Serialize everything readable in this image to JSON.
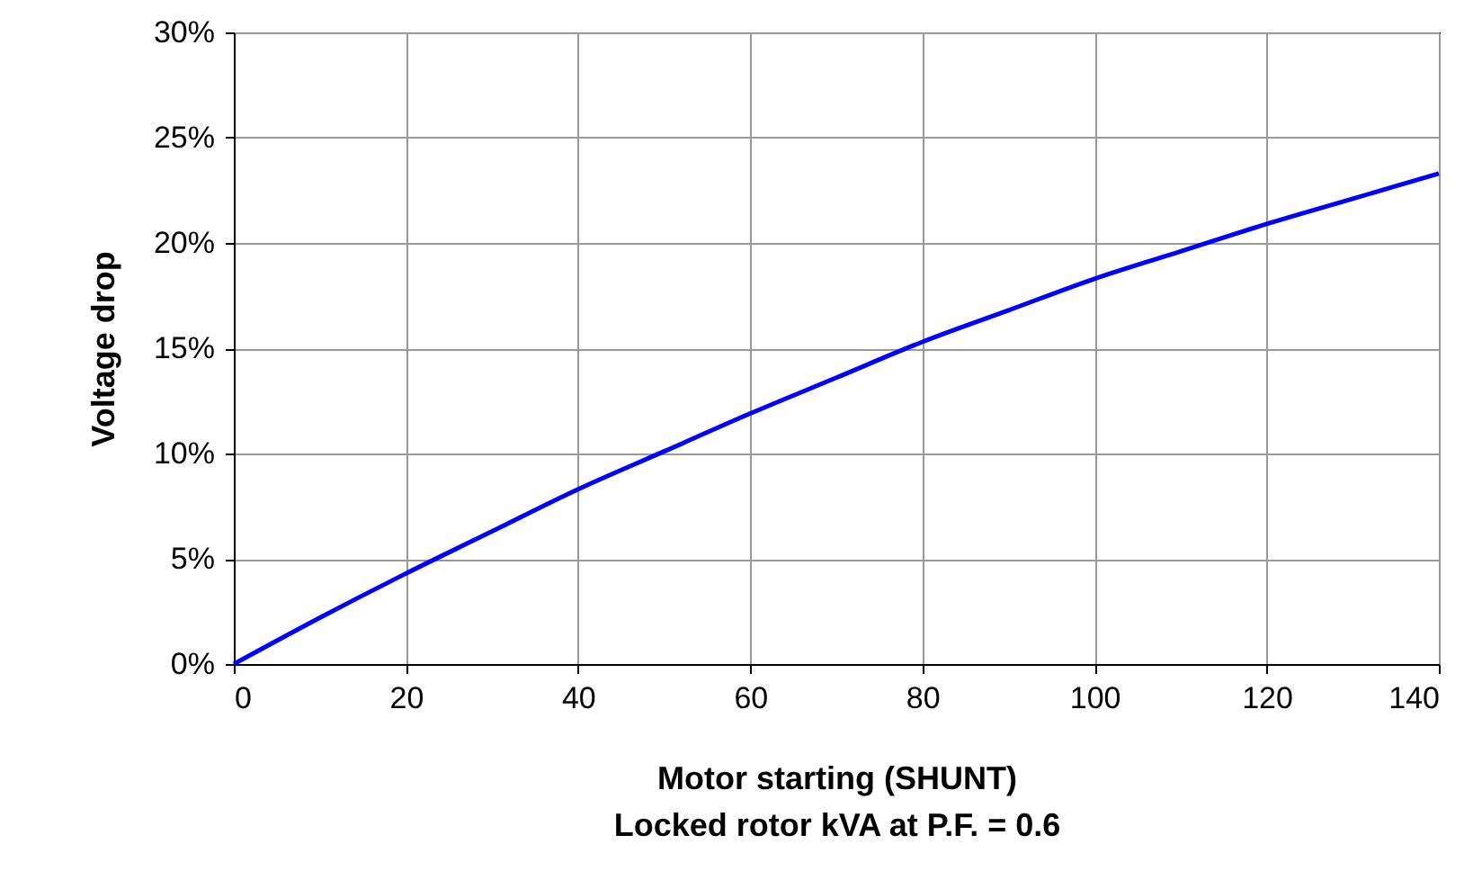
{
  "chart_data": {
    "type": "line",
    "xlabel": "Motor starting (SHUNT)\nLocked rotor kVA at P.F. = 0.6",
    "ylabel": "Voltage drop",
    "x": [
      0,
      10,
      20,
      30,
      40,
      50,
      60,
      70,
      80,
      90,
      100,
      110,
      120,
      130,
      140
    ],
    "series": [
      {
        "color": "#0000ff",
        "values": [
          0,
          2.2,
          4.3,
          6.3,
          8.3,
          10.1,
          11.9,
          13.6,
          15.3,
          16.8,
          18.3,
          19.6,
          20.9,
          22.1,
          23.3
        ]
      }
    ],
    "xlim": [
      0,
      140
    ],
    "xticks": [
      0,
      20,
      40,
      60,
      80,
      100,
      120,
      140
    ],
    "ylim": [
      0,
      30
    ],
    "yticks": [
      {
        "value": 0,
        "label": "0%"
      },
      {
        "value": 5,
        "label": "5%"
      },
      {
        "value": 10,
        "label": "10%"
      },
      {
        "value": 15,
        "label": "15%"
      },
      {
        "value": 20,
        "label": "20%"
      },
      {
        "value": 25,
        "label": "25%"
      },
      {
        "value": 30,
        "label": "30%"
      }
    ],
    "grid": true
  }
}
